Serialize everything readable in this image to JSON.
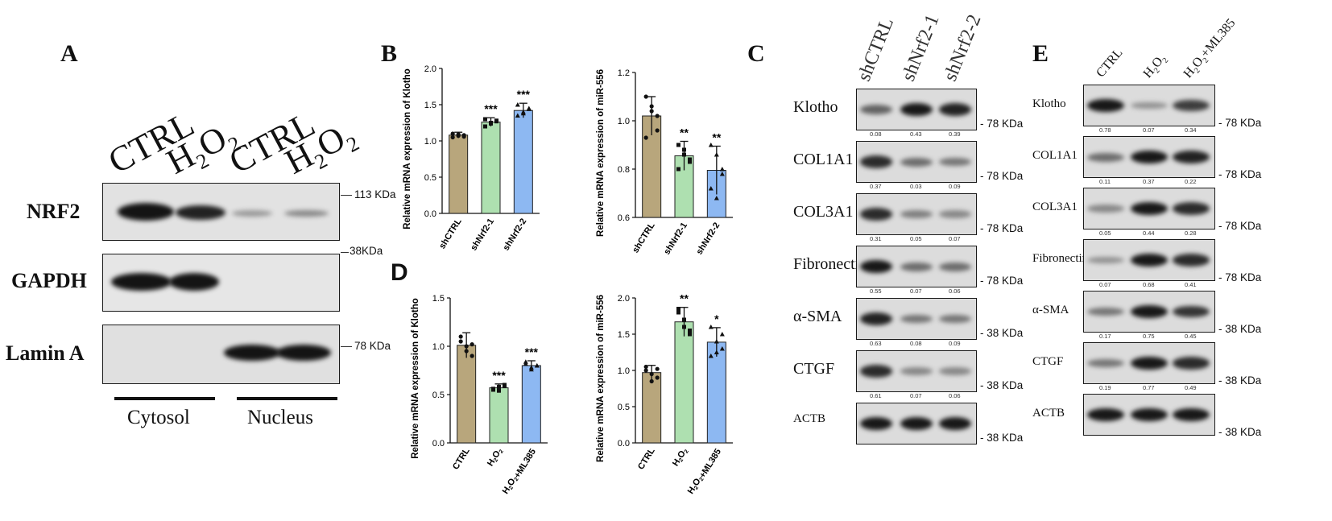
{
  "panelA": {
    "label": "A",
    "columns": [
      "CTRL",
      "H2O2",
      "CTRL",
      "H2O2"
    ],
    "rows": [
      {
        "name": "NRF2",
        "kda": "113 KDa"
      },
      {
        "name": "GAPDH",
        "kda": "38KDa"
      },
      {
        "name": "Lamin A",
        "kda": "78 KDa"
      }
    ],
    "fractions": [
      "Cytosol",
      "Nucleus"
    ]
  },
  "panelB": {
    "label": "B"
  },
  "panelD": {
    "label": "D"
  },
  "panelC": {
    "label": "C",
    "columns": [
      "shCTRL",
      "shNrf2-1",
      "shNrf2-2"
    ],
    "rows": [
      {
        "name": "Klotho",
        "kda": "78 KDa",
        "quant": [
          "0.08",
          "0.43",
          "0.39"
        ]
      },
      {
        "name": "COL1A1",
        "kda": "78 KDa",
        "quant": [
          "0.37",
          "0.03",
          "0.09"
        ]
      },
      {
        "name": "COL3A1",
        "kda": "78 KDa",
        "quant": [
          "0.31",
          "0.05",
          "0.07"
        ]
      },
      {
        "name": "Fibronectin",
        "kda": "78 KDa",
        "quant": [
          "0.55",
          "0.07",
          "0.06"
        ]
      },
      {
        "name": "α-SMA",
        "kda": "38 KDa",
        "quant": [
          "0.63",
          "0.08",
          "0.09"
        ]
      },
      {
        "name": "CTGF",
        "kda": "38 KDa",
        "quant": [
          "0.61",
          "0.07",
          "0.06"
        ]
      },
      {
        "name": "ACTB",
        "kda": "38 KDa",
        "quant": []
      }
    ]
  },
  "panelE": {
    "label": "E",
    "columns": [
      "CTRL",
      "H2O2",
      "H2O2+ML385"
    ],
    "rows": [
      {
        "name": "Klotho",
        "kda": "78 KDa",
        "quant": [
          "0.78",
          "0.07",
          "0.34"
        ]
      },
      {
        "name": "COL1A1",
        "kda": "78 KDa",
        "quant": [
          "0.11",
          "0.37",
          "0.22"
        ]
      },
      {
        "name": "COL3A1",
        "kda": "78 KDa",
        "quant": [
          "0.05",
          "0.44",
          "0.28"
        ]
      },
      {
        "name": "Fibronectin",
        "kda": "78 KDa",
        "quant": [
          "0.07",
          "0.68",
          "0.41"
        ]
      },
      {
        "name": "α-SMA",
        "kda": "38 KDa",
        "quant": [
          "0.17",
          "0.75",
          "0.45"
        ]
      },
      {
        "name": "CTGF",
        "kda": "38 KDa",
        "quant": [
          "0.19",
          "0.77",
          "0.49"
        ]
      },
      {
        "name": "ACTB",
        "kda": "38 KDa",
        "quant": []
      }
    ]
  },
  "chart_data": [
    {
      "id": "B-klotho",
      "type": "bar",
      "ylabel": "Relative mRNA expression of Klotho",
      "categories": [
        "shCTRL",
        "shNrf2-1",
        "shNrf2-2"
      ],
      "values": [
        1.08,
        1.26,
        1.42
      ],
      "errors": [
        0.04,
        0.06,
        0.1
      ],
      "significance": [
        "",
        "***",
        "***"
      ],
      "ylim": [
        0,
        2.0
      ],
      "yticks": [
        "0.0",
        "0.5",
        "1.0",
        "1.5",
        "2.0"
      ],
      "points": [
        [
          1.05,
          1.07,
          1.08,
          1.1,
          1.09,
          1.06
        ],
        [
          1.2,
          1.24,
          1.27,
          1.3,
          1.25,
          1.28
        ],
        [
          1.35,
          1.4,
          1.44,
          1.5,
          1.38,
          1.45
        ]
      ],
      "colors": [
        "#b8a67c",
        "#aee0b0",
        "#8db8f2"
      ]
    },
    {
      "id": "B-mir556",
      "type": "bar",
      "ylabel": "Relative mRNA expression of miR-556",
      "categories": [
        "shCTRL",
        "shNrf2-1",
        "shNrf2-2"
      ],
      "values": [
        1.02,
        0.855,
        0.795
      ],
      "errors": [
        0.08,
        0.06,
        0.1
      ],
      "significance": [
        "",
        "**",
        "**"
      ],
      "ylim": [
        0.6,
        1.2
      ],
      "yticks": [
        "0.6",
        "0.8",
        "1.0",
        "1.2"
      ],
      "points": [
        [
          1.1,
          1.06,
          0.96,
          0.93,
          1.04,
          1.02
        ],
        [
          0.9,
          0.88,
          0.83,
          0.8,
          0.86,
          0.84
        ],
        [
          0.9,
          0.86,
          0.78,
          0.72,
          0.68,
          0.8
        ]
      ],
      "colors": [
        "#b8a67c",
        "#aee0b0",
        "#8db8f2"
      ]
    },
    {
      "id": "D-klotho",
      "type": "bar",
      "ylabel": "Relative mRNA expression of Klotho",
      "categories": [
        "CTRL",
        "H2O2",
        "H2O2+ML385"
      ],
      "values": [
        1.01,
        0.57,
        0.8
      ],
      "errors": [
        0.13,
        0.04,
        0.05
      ],
      "significance": [
        "",
        "***",
        "***"
      ],
      "ylim": [
        0,
        1.5
      ],
      "yticks": [
        "0.0",
        "0.5",
        "1.0",
        "1.5"
      ],
      "points": [
        [
          1.1,
          1.0,
          0.9,
          1.05,
          0.95,
          1.02
        ],
        [
          0.55,
          0.58,
          0.6,
          0.56,
          0.54,
          0.59
        ],
        [
          0.82,
          0.78,
          0.8,
          0.84,
          0.76,
          0.8
        ]
      ],
      "colors": [
        "#b8a67c",
        "#aee0b0",
        "#8db8f2"
      ]
    },
    {
      "id": "D-mir556",
      "type": "bar",
      "ylabel": "Relative mRNA expression of miR-556",
      "categories": [
        "CTRL",
        "H2O2",
        "H2O2+ML385"
      ],
      "values": [
        0.97,
        1.67,
        1.39
      ],
      "errors": [
        0.1,
        0.2,
        0.2
      ],
      "significance": [
        "",
        "**",
        "*"
      ],
      "ylim": [
        0,
        2.0
      ],
      "yticks": [
        "0.0",
        "0.5",
        "1.0",
        "1.5",
        "2.0"
      ],
      "points": [
        [
          1.05,
          0.95,
          0.9,
          1.0,
          0.85,
          1.02
        ],
        [
          1.85,
          1.7,
          1.55,
          1.8,
          1.6,
          1.5
        ],
        [
          1.6,
          1.4,
          1.3,
          1.2,
          1.25,
          1.5
        ]
      ],
      "colors": [
        "#b8a67c",
        "#aee0b0",
        "#8db8f2"
      ]
    }
  ]
}
